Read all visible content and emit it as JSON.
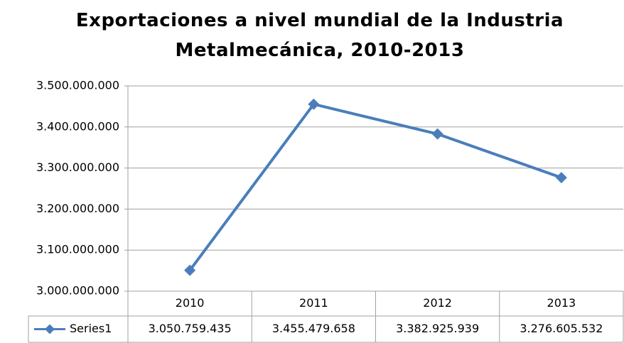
{
  "chart_data": {
    "type": "line",
    "title": "Exportaciones a nivel mundial de la Industria Metalmecánica, 2010-2013",
    "categories": [
      "2010",
      "2011",
      "2012",
      "2013"
    ],
    "series": [
      {
        "name": "Series1",
        "color": "#4a7ebb",
        "values": [
          3050759435,
          3455479658,
          3382925939,
          3276605532
        ],
        "value_labels": [
          "3.050.759.435",
          "3.455.479.658",
          "3.382.925.939",
          "3.276.605.532"
        ]
      }
    ],
    "ylim": [
      3000000000,
      3500000000
    ],
    "yticks": [
      {
        "value": 3000000000,
        "label": "3.000.000.000"
      },
      {
        "value": 3100000000,
        "label": "3.100.000.000"
      },
      {
        "value": 3200000000,
        "label": "3.200.000.000"
      },
      {
        "value": 3300000000,
        "label": "3.300.000.000"
      },
      {
        "value": 3400000000,
        "label": "3.400.000.000"
      },
      {
        "value": 3500000000,
        "label": "3.500.000.000"
      }
    ],
    "grid": true
  }
}
